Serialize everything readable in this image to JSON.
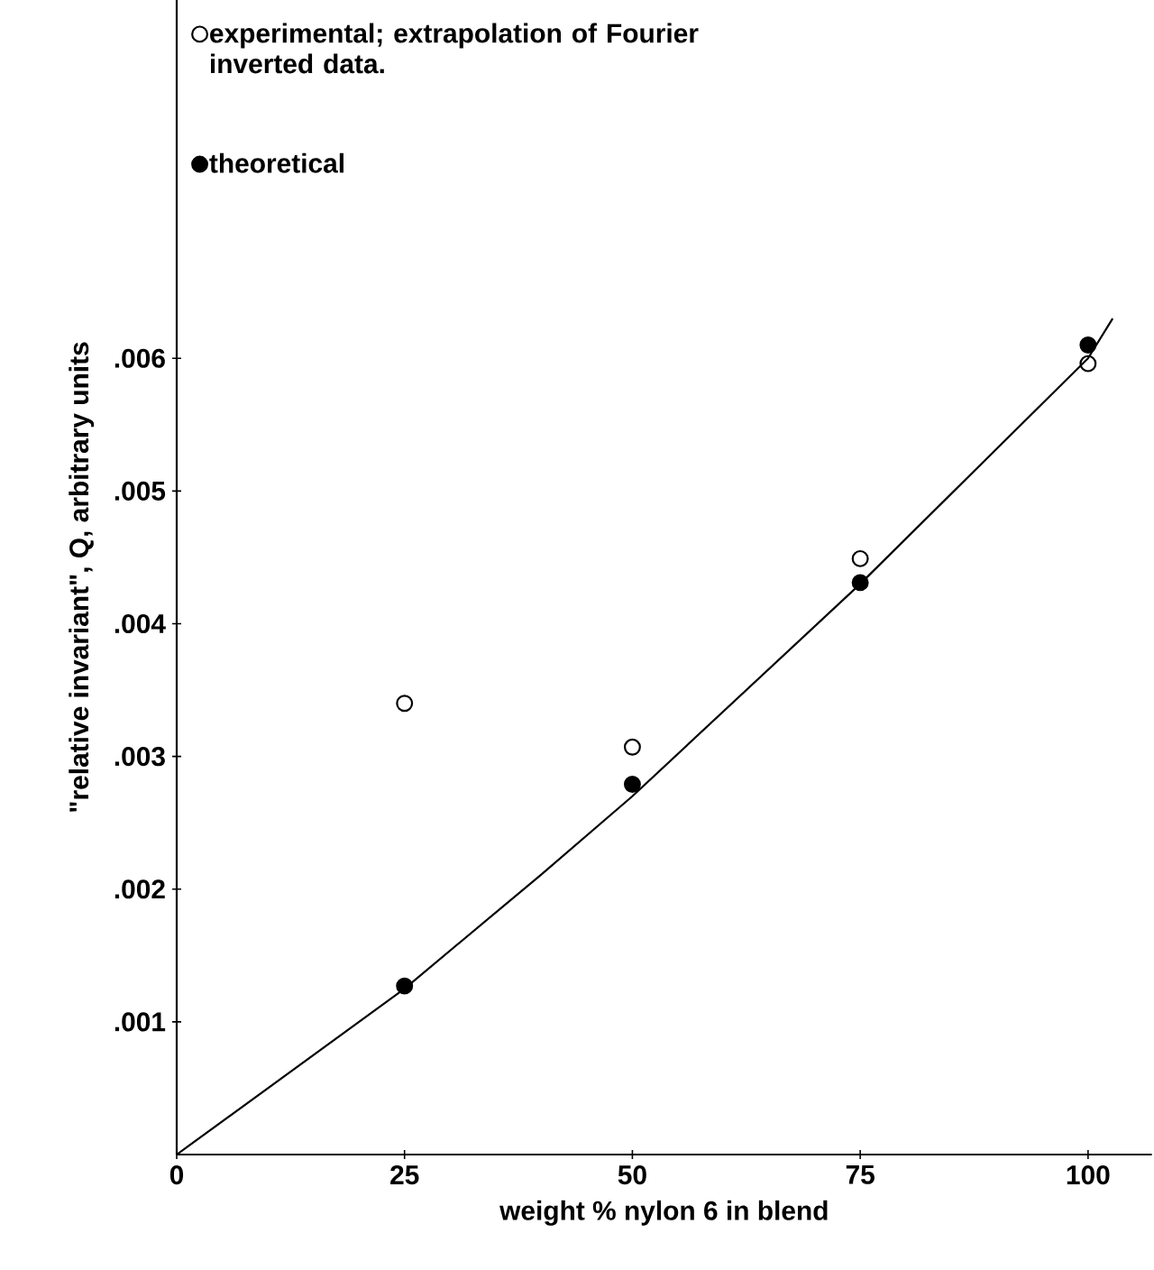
{
  "chart_data": {
    "type": "scatter",
    "xlabel": "weight % nylon 6 in blend",
    "ylabel": "\"relative invariant\", Q, arbitrary units",
    "xlim": [
      0,
      107
    ],
    "ylim": [
      0,
      0.0087
    ],
    "xticks": [
      0,
      25,
      50,
      75,
      100
    ],
    "yticks": [
      {
        "value": 0.001,
        "label": ".001"
      },
      {
        "value": 0.002,
        "label": ".002"
      },
      {
        "value": 0.003,
        "label": ".003"
      },
      {
        "value": 0.004,
        "label": ".004"
      },
      {
        "value": 0.005,
        "label": ".005"
      },
      {
        "value": 0.006,
        "label": ".006"
      }
    ],
    "legend": "top left",
    "grid": false,
    "series": [
      {
        "name": "experimental; extrapolation of Fourier inverted data.",
        "marker": "circle",
        "color": "#000000",
        "x": [
          25,
          50,
          75,
          100
        ],
        "values": [
          0.0034,
          0.00307,
          0.00449,
          0.00596
        ]
      },
      {
        "name": "theoretical",
        "marker": "circle",
        "color": "#000000",
        "x": [
          25,
          50,
          75,
          100
        ],
        "values": [
          0.00127,
          0.00279,
          0.00431,
          0.0061
        ]
      },
      {
        "type": "line",
        "color": "#000000",
        "x": [
          0,
          25,
          40,
          50,
          75,
          100,
          102.7
        ],
        "values": [
          0,
          0.00125,
          0.00211,
          0.0027,
          0.0043,
          0.006,
          0.0063
        ]
      }
    ]
  }
}
